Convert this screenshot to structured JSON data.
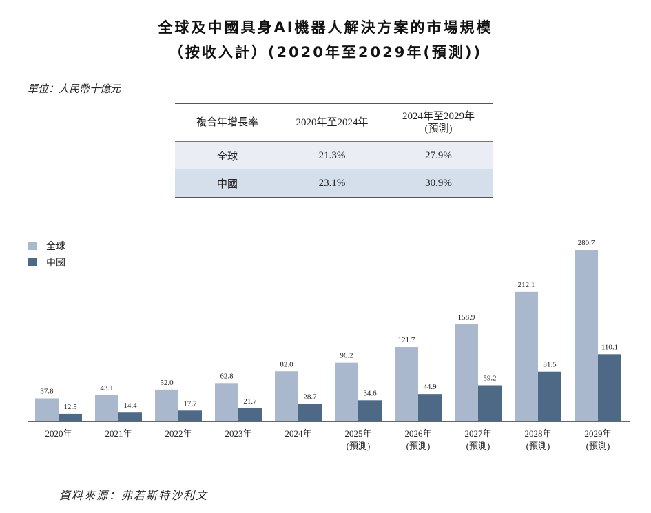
{
  "title_line1": "全球及中國具身AI機器人解決方案的市場規模",
  "title_line2": "（按收入計）(2020年至2029年(預測))",
  "unit": "單位：人民幣十億元",
  "cagr_table": {
    "header": [
      "複合年增長率",
      "2020年至2024年",
      "2024年至2029年",
      "(預測)"
    ],
    "rows": [
      {
        "label": "全球",
        "v1": "21.3%",
        "v2": "27.9%"
      },
      {
        "label": "中國",
        "v1": "23.1%",
        "v2": "30.9%"
      }
    ]
  },
  "colors": {
    "global": "#a9b8cc",
    "china": "#4d6986"
  },
  "chart_data": {
    "type": "bar",
    "categories": [
      "2020年",
      "2021年",
      "2022年",
      "2023年",
      "2024年",
      "2025年",
      "2026年",
      "2027年",
      "2028年",
      "2029年"
    ],
    "category_sublabels": [
      "",
      "",
      "",
      "",
      "",
      "(預測)",
      "(預測)",
      "(預測)",
      "(預測)",
      "(預測)"
    ],
    "series": [
      {
        "name": "全球",
        "values": [
          37.8,
          43.1,
          52.0,
          62.8,
          82.0,
          96.2,
          121.7,
          158.9,
          212.1,
          280.7
        ]
      },
      {
        "name": "中國",
        "values": [
          12.5,
          14.4,
          17.7,
          21.7,
          28.7,
          34.6,
          44.9,
          59.2,
          81.5,
          110.1
        ]
      }
    ],
    "value_labels": {
      "全球": [
        "37.8",
        "43.1",
        "52.0",
        "62.8",
        "82.0",
        "96.2",
        "121.7",
        "158.9",
        "212.1",
        "280.7"
      ],
      "中國": [
        "12.5",
        "14.4",
        "17.7",
        "21.7",
        "28.7",
        "34.6",
        "44.9",
        "59.2",
        "81.5",
        "110.1"
      ]
    },
    "legend_position": "top-left",
    "ylim": [
      0,
      280.7
    ],
    "grid": false
  },
  "source": "資料來源：弗若斯特沙利文"
}
